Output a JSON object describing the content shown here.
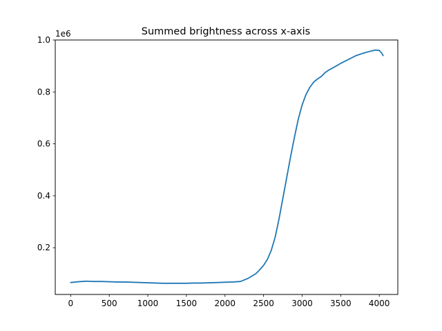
{
  "chart_data": {
    "type": "line",
    "title": "Summed brightness across x-axis",
    "xlabel": "",
    "ylabel": "",
    "y_offset_label": "1e6",
    "xlim": [
      -200,
      4240
    ],
    "ylim": [
      0.02,
      1.0
    ],
    "x_ticks": [
      0,
      500,
      1000,
      1500,
      2000,
      2500,
      3000,
      3500,
      4000
    ],
    "x_tick_labels": [
      "0",
      "500",
      "1000",
      "1500",
      "2000",
      "2500",
      "3000",
      "3500",
      "4000"
    ],
    "y_ticks": [
      0.2,
      0.4,
      0.6,
      0.8,
      1.0
    ],
    "y_tick_labels": [
      "0.2",
      "0.4",
      "0.6",
      "0.8",
      "1.0"
    ],
    "grid": false,
    "series": [
      {
        "color": "#1f77b4",
        "x": [
          0,
          100,
          200,
          300,
          400,
          500,
          600,
          700,
          800,
          900,
          1000,
          1100,
          1200,
          1300,
          1400,
          1500,
          1600,
          1700,
          1800,
          1900,
          2000,
          2100,
          2200,
          2300,
          2400,
          2450,
          2500,
          2550,
          2600,
          2650,
          2700,
          2750,
          2800,
          2850,
          2900,
          2950,
          3000,
          3050,
          3100,
          3150,
          3200,
          3250,
          3300,
          3350,
          3400,
          3500,
          3600,
          3700,
          3800,
          3900,
          3950,
          4000,
          4030,
          4050
        ],
        "y": [
          0.066,
          0.069,
          0.071,
          0.07,
          0.07,
          0.069,
          0.068,
          0.068,
          0.067,
          0.066,
          0.065,
          0.064,
          0.063,
          0.063,
          0.063,
          0.063,
          0.064,
          0.064,
          0.065,
          0.066,
          0.067,
          0.068,
          0.07,
          0.082,
          0.1,
          0.115,
          0.132,
          0.155,
          0.19,
          0.24,
          0.31,
          0.39,
          0.47,
          0.55,
          0.625,
          0.695,
          0.75,
          0.79,
          0.818,
          0.838,
          0.85,
          0.86,
          0.875,
          0.885,
          0.893,
          0.91,
          0.925,
          0.94,
          0.95,
          0.958,
          0.961,
          0.96,
          0.95,
          0.94
        ]
      }
    ]
  }
}
